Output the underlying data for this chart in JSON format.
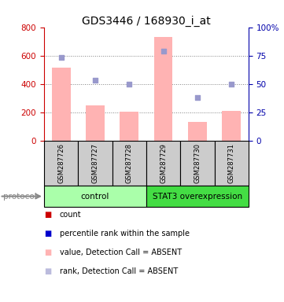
{
  "title": "GDS3446 / 168930_i_at",
  "samples": [
    "GSM287726",
    "GSM287727",
    "GSM287728",
    "GSM287729",
    "GSM287730",
    "GSM287731"
  ],
  "bar_values": [
    515,
    245,
    205,
    730,
    130,
    210
  ],
  "rank_dots": [
    585,
    425,
    395,
    630,
    305,
    400
  ],
  "ylim_left": [
    0,
    800
  ],
  "ylim_right": [
    0,
    100
  ],
  "yticks_left": [
    0,
    200,
    400,
    600,
    800
  ],
  "yticks_right": [
    0,
    25,
    50,
    75,
    100
  ],
  "yticklabels_right": [
    "0",
    "25",
    "50",
    "75",
    "100%"
  ],
  "bar_color": "#ffb3b3",
  "dot_color": "#9999cc",
  "protocol_groups": [
    {
      "label": "control",
      "indices": [
        0,
        1,
        2
      ],
      "color": "#aaffaa"
    },
    {
      "label": "STAT3 overexpression",
      "indices": [
        3,
        4,
        5
      ],
      "color": "#44dd44"
    }
  ],
  "legend_items": [
    {
      "color": "#cc0000",
      "label": "count"
    },
    {
      "color": "#0000cc",
      "label": "percentile rank within the sample"
    },
    {
      "color": "#ffb3b3",
      "label": "value, Detection Call = ABSENT"
    },
    {
      "color": "#bbbbdd",
      "label": "rank, Detection Call = ABSENT"
    }
  ],
  "left_axis_color": "#cc0000",
  "right_axis_color": "#0000aa",
  "title_fontsize": 10,
  "tick_fontsize": 7.5,
  "sample_fontsize": 6,
  "legend_fontsize": 7,
  "protocol_fontsize": 7.5,
  "protocol_label_fontsize": 7.5
}
